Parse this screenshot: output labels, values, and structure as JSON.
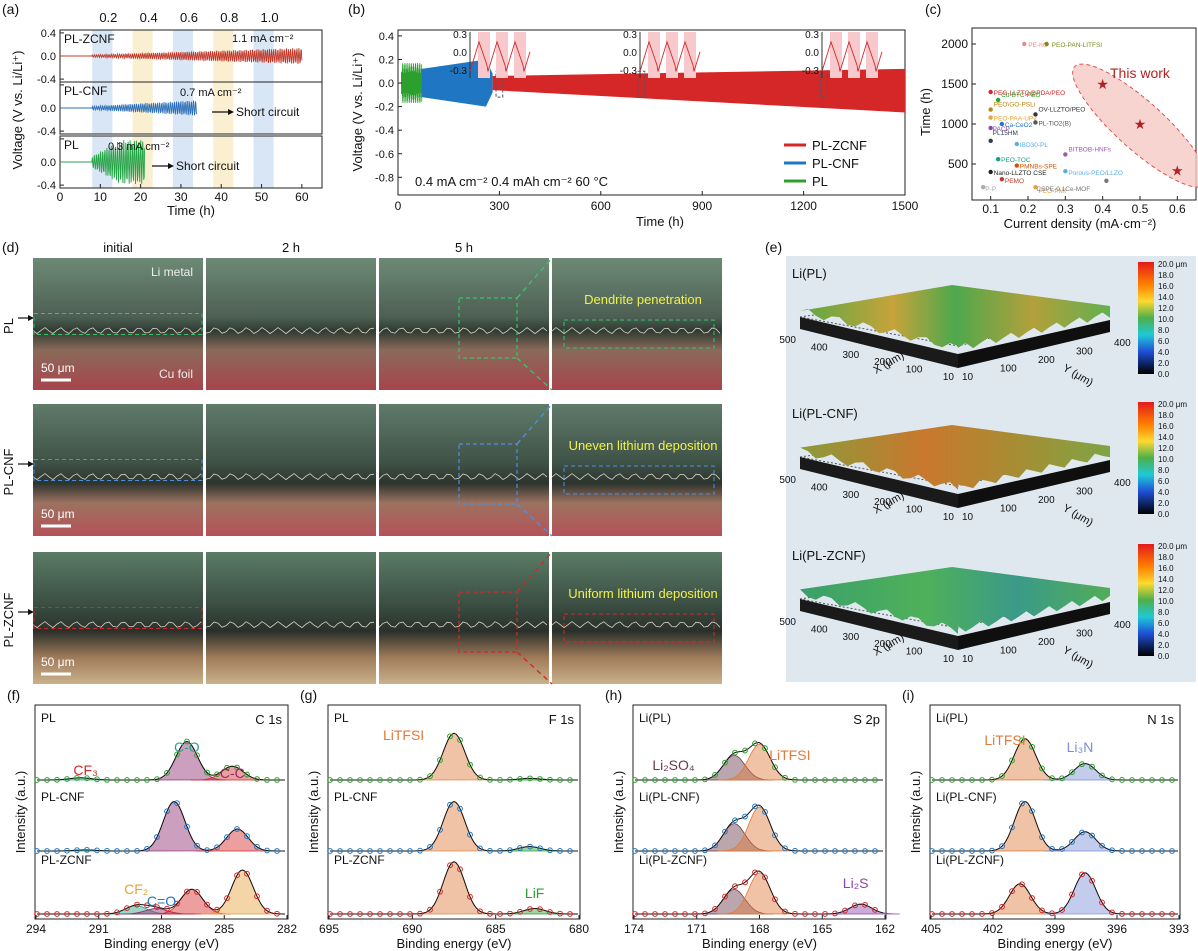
{
  "panel_a": {
    "letter": "(a)",
    "ylabel": "Voltage (V vs. Li/Li⁺)",
    "xlabel": "Time (h)",
    "current_labels": [
      "0.2",
      "0.4",
      "0.6",
      "0.8",
      "1.0"
    ],
    "xticks": [
      "0",
      "10",
      "20",
      "30",
      "40",
      "50",
      "60"
    ],
    "subplots": [
      {
        "label": "PL-ZCNF",
        "note": "1.1 mA cm⁻²",
        "short": "",
        "yticks": [
          "0.4",
          "0.0",
          "-0.4"
        ],
        "color": "#c0392b"
      },
      {
        "label": "PL-CNF",
        "note": "0.7 mA cm⁻²",
        "short": "Short circuit",
        "yticks": [
          "0.4",
          "0.0",
          "-0.4"
        ],
        "color": "#2c6fb7"
      },
      {
        "label": "PL",
        "note": "0.3 mA cm⁻²",
        "short": "Short circuit",
        "yticks": [
          "0.4",
          "0.0",
          "-0.4"
        ],
        "color": "#27a347"
      }
    ]
  },
  "panel_b": {
    "letter": "(b)",
    "ylabel": "Voltage (V vs. Li/Li⁺)",
    "xlabel": "Time  (h)",
    "xticks": [
      "0",
      "300",
      "600",
      "900",
      "1200",
      "1500"
    ],
    "yticks": [
      "0.4",
      "0.2",
      "0.0",
      "-0.2",
      "-0.4",
      "-0.6",
      "-0.8"
    ],
    "condition": "0.4 mA cm⁻² 0.4 mAh cm⁻²  60 °C",
    "inset_ticks": [
      "0.3",
      "0.0",
      "-0.3"
    ],
    "legend": [
      {
        "name": "PL-ZCNF",
        "color": "#d62728"
      },
      {
        "name": "PL-CNF",
        "color": "#1f77c4"
      },
      {
        "name": "PL",
        "color": "#2ca02c"
      }
    ]
  },
  "panel_c": {
    "letter": "(c)",
    "ylabel": "Time (h)",
    "xlabel": "Current density (mA·cm⁻²)",
    "xticks": [
      "0.1",
      "0.2",
      "0.3",
      "0.4",
      "0.5",
      "0.6"
    ],
    "yticks": [
      "500",
      "1000",
      "1500",
      "2000"
    ],
    "this_work": "This work",
    "refs": [
      {
        "t": "PE-hG",
        "c": "#e88a8a"
      },
      {
        "t": "PEO-PAN-LITFSI",
        "c": "#7a8a1a"
      },
      {
        "t": "PEG-LLZTO@PDA/PEO",
        "c": "#d62728"
      },
      {
        "t": "Cu-BTC-PEO",
        "c": "#2ca02c"
      },
      {
        "t": "PEO\\GO-PSLi",
        "c": "#b8860b"
      },
      {
        "t": "PEO-PAA-UPy",
        "c": "#e6a23c"
      },
      {
        "t": "OV-LLZTO/PEO",
        "c": "#333333"
      },
      {
        "t": "Ca-CeO2",
        "c": "#1f77c4"
      },
      {
        "t": "PL-TiO2(B)",
        "c": "#555555"
      },
      {
        "t": "PACP",
        "c": "#8e44ad"
      },
      {
        "t": "PL15HM",
        "c": "#2c3e50"
      },
      {
        "t": "IBD30-PL",
        "c": "#5dade2"
      },
      {
        "t": "BITBOB-HNFs",
        "c": "#9b59b6"
      },
      {
        "t": "PEO-TOC",
        "c": "#16a085"
      },
      {
        "t": "PMNBs-SPE",
        "c": "#d35400"
      },
      {
        "t": "Nano-LLZTO CSE",
        "c": "#222222"
      },
      {
        "t": "Porous-PEO/LLZO",
        "c": "#5dade2"
      },
      {
        "t": "PEMO",
        "c": "#c0392b"
      },
      {
        "t": "P-P",
        "c": "#aaaaaa"
      },
      {
        "t": "PEO-PMI",
        "c": "#e6a23c"
      },
      {
        "t": "CSPE-0.1Ce-MOF",
        "c": "#777777"
      }
    ]
  },
  "panel_d": {
    "letter": "(d)",
    "columns": [
      "initial",
      "2 h",
      "5 h"
    ],
    "rows": [
      {
        "label": "PL",
        "annotation": "Dendrite penetration",
        "line": "#35c46b"
      },
      {
        "label": "PL-CNF",
        "annotation": "Uneven lithium deposition",
        "line": "#4a90e2"
      },
      {
        "label": "PL-ZCNF",
        "annotation": "Uniform lithium deposition",
        "line": "#d62728"
      }
    ],
    "li_metal": "Li metal",
    "cu_foil": "Cu foil",
    "scale": "50 μm"
  },
  "panel_e": {
    "letter": "(e)",
    "maps": [
      "Li(PL)",
      "Li(PL-CNF)",
      "Li(PL-ZCNF)"
    ],
    "colorbar": [
      "20.0 μm",
      "18.0",
      "16.0",
      "14.0",
      "12.0",
      "10.0",
      "8.0",
      "6.0",
      "4.0",
      "2.0",
      "0.0"
    ],
    "x_axis": "X (μm)",
    "y_axis": "Y (μm)",
    "x_ticks": [
      "500",
      "400",
      "300",
      "200",
      "100",
      "10"
    ],
    "y_ticks": [
      "10",
      "100",
      "200",
      "300",
      "400"
    ]
  },
  "xps": [
    {
      "letter": "(f)",
      "core": "C 1s",
      "xticks": [
        "294",
        "291",
        "288",
        "285",
        "282"
      ],
      "traces": [
        {
          "name": "PL",
          "circ": "#2ca02c"
        },
        {
          "name": "PL-CNF",
          "circ": "#1f77c4"
        },
        {
          "name": "PL-ZCNF",
          "circ": "#d62728"
        }
      ],
      "peaks": [
        {
          "t": "C-O",
          "c": "#2aa58a"
        },
        {
          "t": "C-C",
          "c": "#8e2b6e"
        },
        {
          "t": "CF₃",
          "c": "#d62728"
        },
        {
          "t": "CF₂",
          "c": "#e6a23c"
        },
        {
          "t": "C=O",
          "c": "#1f77c4"
        }
      ]
    },
    {
      "letter": "(g)",
      "core": "F 1s",
      "xticks": [
        "695",
        "690",
        "685",
        "680"
      ],
      "traces": [
        {
          "name": "PL",
          "circ": "#2ca02c"
        },
        {
          "name": "PL-CNF",
          "circ": "#1f77c4"
        },
        {
          "name": "PL-ZCNF",
          "circ": "#d62728"
        }
      ],
      "peaks": [
        {
          "t": "LiTFSI",
          "c": "#e07b39"
        },
        {
          "t": "LiF",
          "c": "#2ca02c"
        }
      ]
    },
    {
      "letter": "(h)",
      "core": "S 2p",
      "xticks": [
        "174",
        "171",
        "168",
        "165",
        "162"
      ],
      "traces": [
        {
          "name": "Li(PL)",
          "circ": "#2ca02c"
        },
        {
          "name": "Li(PL-CNF)",
          "circ": "#1f77c4"
        },
        {
          "name": "Li(PL-ZCNF)",
          "circ": "#d62728"
        }
      ],
      "peaks": [
        {
          "t": "Li₂SO₄",
          "c": "#6b3a4a"
        },
        {
          "t": "LiTFSI",
          "c": "#e07b39"
        },
        {
          "t": "Li₂S",
          "c": "#8e44ad"
        }
      ]
    },
    {
      "letter": "(i)",
      "core": "N 1s",
      "xticks": [
        "405",
        "402",
        "399",
        "396",
        "393"
      ],
      "traces": [
        {
          "name": "Li(PL)",
          "circ": "#2ca02c"
        },
        {
          "name": "Li(PL-CNF)",
          "circ": "#1f77c4"
        },
        {
          "name": "Li(PL-ZCNF)",
          "circ": "#d62728"
        }
      ],
      "peaks": [
        {
          "t": "LiTFSI",
          "c": "#e07b39"
        },
        {
          "t": "Li₃N",
          "c": "#7b8fd6"
        }
      ]
    }
  ],
  "xps_xlabel": "Binding energy (eV)",
  "xps_ylabel": "Intensity (a.u.)"
}
